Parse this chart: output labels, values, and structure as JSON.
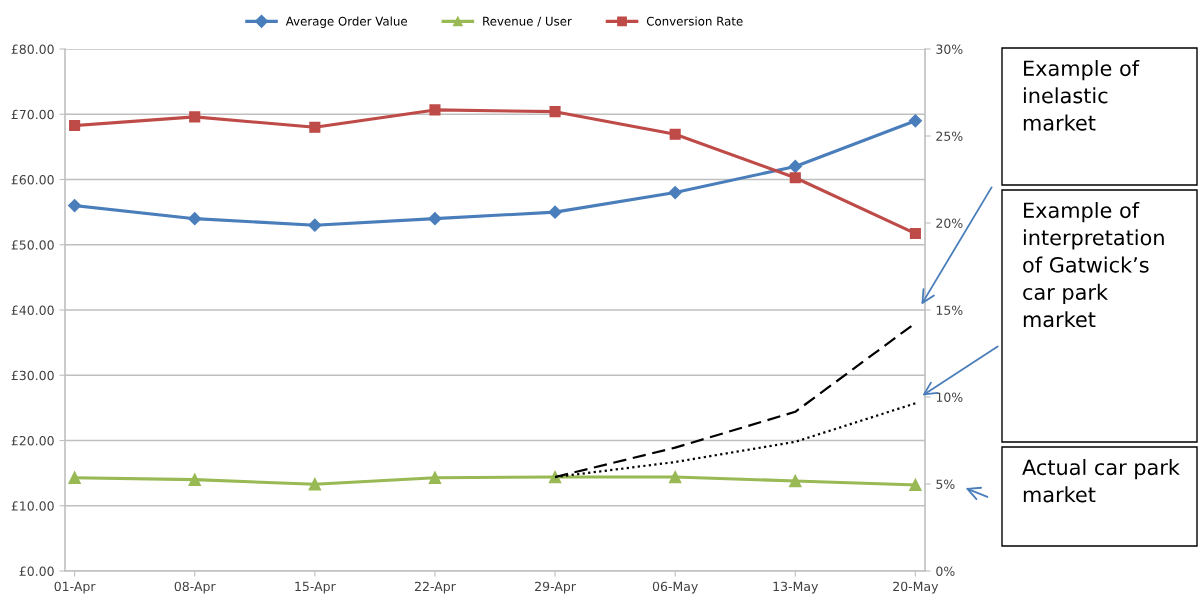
{
  "chart_data": {
    "type": "line",
    "categories": [
      "01-Apr",
      "08-Apr",
      "15-Apr",
      "22-Apr",
      "29-Apr",
      "06-May",
      "13-May",
      "20-May"
    ],
    "series": [
      {
        "name": "Average Order Value",
        "color": "#4a7ebb",
        "marker": "diamond",
        "values": [
          56,
          54,
          53,
          54,
          55,
          58,
          62,
          69
        ]
      },
      {
        "name": "Revenue / User",
        "color": "#98b954",
        "marker": "triangle",
        "values": [
          14.3,
          14.0,
          13.3,
          14.3,
          14.4,
          14.4,
          13.8,
          13.2
        ]
      },
      {
        "name": "Conversion Rate",
        "color": "#be4b48",
        "marker": "square",
        "axis": "y2",
        "values": [
          25.6,
          26.1,
          25.5,
          26.5,
          26.4,
          25.1,
          22.6,
          19.4
        ]
      },
      {
        "color": "#000000",
        "marker": "none",
        "line_style": "dashed",
        "values": [
          null,
          null,
          null,
          null,
          14.4,
          18.9,
          24.4,
          38.0
        ]
      },
      {
        "color": "#000000",
        "marker": "none",
        "line_style": "dotted",
        "values": [
          null,
          null,
          null,
          null,
          14.4,
          16.7,
          19.8,
          25.7
        ]
      }
    ],
    "ylim": [
      0,
      80
    ],
    "yticks": [
      {
        "value": 0,
        "label": "£0.00"
      },
      {
        "value": 10,
        "label": "£10.00"
      },
      {
        "value": 20,
        "label": "£20.00"
      },
      {
        "value": 30,
        "label": "£30.00"
      },
      {
        "value": 40,
        "label": "£40.00"
      },
      {
        "value": 50,
        "label": "£50.00"
      },
      {
        "value": 60,
        "label": "£60.00"
      },
      {
        "value": 70,
        "label": "£70.00"
      },
      {
        "value": 80,
        "label": "£80.00"
      }
    ],
    "y2lim": [
      0,
      30
    ],
    "y2ticks": [
      {
        "value": 0,
        "label": "0%"
      },
      {
        "value": 5,
        "label": "5%"
      },
      {
        "value": 10,
        "label": "10%"
      },
      {
        "value": 15,
        "label": "15%"
      },
      {
        "value": 20,
        "label": "20%"
      },
      {
        "value": 25,
        "label": "25%"
      },
      {
        "value": 30,
        "label": "30%"
      }
    ],
    "grid": "y",
    "legend": "top",
    "annotations": [
      "Example of\ninelastic\nmarket",
      "Example of\ninterpretation\nof Gatwick’s\ncar park\nmarket",
      "Actual car park\nmarket"
    ]
  }
}
